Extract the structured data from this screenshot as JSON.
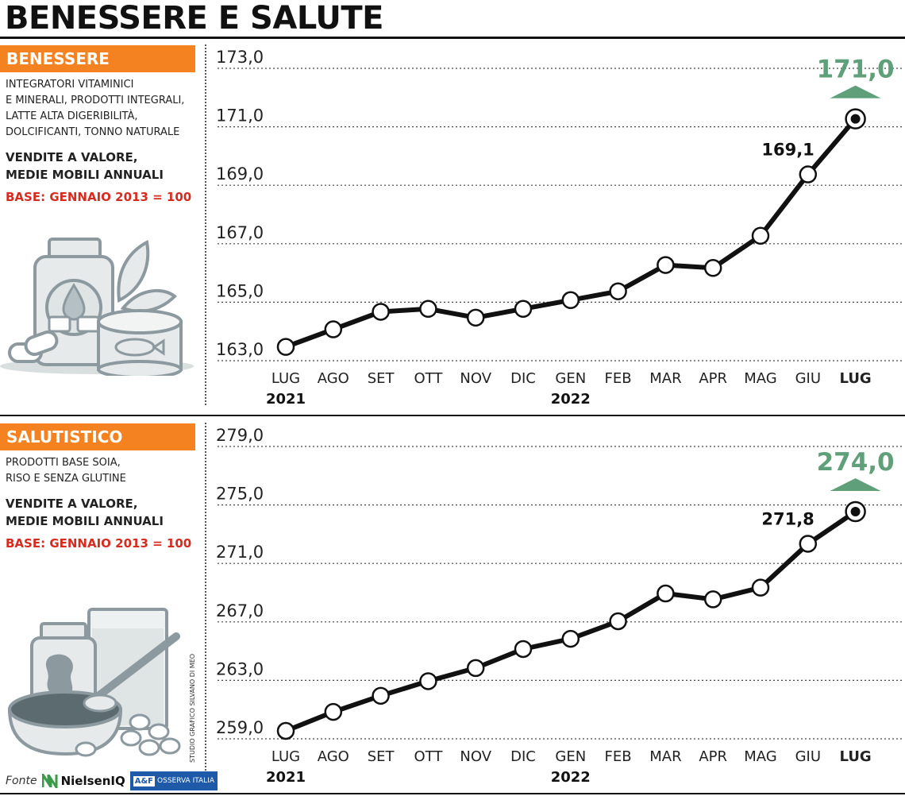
{
  "header": {
    "title": "BENESSERE E SALUTE"
  },
  "panels": [
    {
      "category": "BENESSERE",
      "description": [
        "INTEGRATORI VITAMINICI",
        "E MINERALI, PRODOTTI INTEGRALI,",
        "LATTE ALTA DIGERIBILITÀ,",
        "DOLCIFICANTI, TONNO NATURALE"
      ],
      "measure": [
        "VENDITE A VALORE,",
        "MEDIE MOBILI ANNUALI"
      ],
      "base": "BASE: GENNAIO 2013 = 100"
    },
    {
      "category": "SALUTISTICO",
      "description": [
        "PRODOTTI BASE SOIA,",
        "RISO E SENZA GLUTINE"
      ],
      "measure": [
        "VENDITE A VALORE,",
        "MEDIE MOBILI ANNUALI"
      ],
      "base": "BASE: GENNAIO 2013 = 100"
    }
  ],
  "chart_data": [
    {
      "type": "line",
      "categories": [
        "LUG",
        "AGO",
        "SET",
        "OTT",
        "NOV",
        "DIC",
        "GEN",
        "FEB",
        "MAR",
        "APR",
        "MAG",
        "GIU",
        "LUG"
      ],
      "years": [
        {
          "label": "2021",
          "index": 0
        },
        {
          "label": "2022",
          "index": 6
        }
      ],
      "yticks": [
        "173,0",
        "171,0",
        "169,0",
        "167,0",
        "165,0",
        "163,0"
      ],
      "ylim": [
        163,
        173
      ],
      "values": [
        163.2,
        163.8,
        164.4,
        164.5,
        164.2,
        164.5,
        164.8,
        165.1,
        166.0,
        165.9,
        167.0,
        169.1,
        171.0
      ],
      "labels": [
        {
          "index": 11,
          "text": "169,1"
        }
      ],
      "highlight": {
        "index": 12,
        "text": "171,0",
        "color": "#5f9f7a"
      },
      "grid": "dotted horizontal",
      "line_color": "#111111"
    },
    {
      "type": "line",
      "categories": [
        "LUG",
        "AGO",
        "SET",
        "OTT",
        "NOV",
        "DIC",
        "GEN",
        "FEB",
        "MAR",
        "APR",
        "MAG",
        "GIU",
        "LUG"
      ],
      "years": [
        {
          "label": "2021",
          "index": 0
        },
        {
          "label": "2022",
          "index": 6
        }
      ],
      "yticks": [
        "279,0",
        "275,0",
        "271,0",
        "267,0",
        "263,0",
        "259,0"
      ],
      "ylim": [
        259,
        279
      ],
      "values": [
        259.0,
        260.3,
        261.4,
        262.4,
        263.3,
        264.6,
        265.3,
        266.5,
        268.4,
        268.0,
        268.8,
        271.8,
        274.0
      ],
      "labels": [
        {
          "index": 11,
          "text": "271,8"
        }
      ],
      "highlight": {
        "index": 12,
        "text": "274,0",
        "color": "#5f9f7a"
      },
      "grid": "dotted horizontal",
      "line_color": "#111111"
    }
  ],
  "footer": {
    "source_label": "Fonte",
    "source_1": "NielsenIQ",
    "source_2_mark": "A&F",
    "source_2": "OSSERVA ITALIA",
    "credit": "STUDIO GRAFICO SILVANO DI MEO"
  },
  "colors": {
    "accent": "#f58220",
    "base_text": "#d62b1f",
    "highlight": "#5f9f7a",
    "illustration": "#8c9aa0"
  }
}
